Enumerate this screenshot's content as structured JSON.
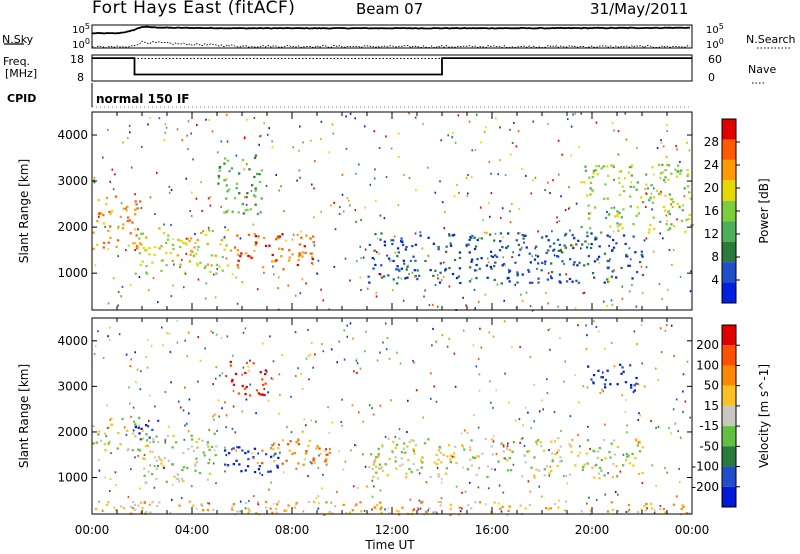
{
  "header": {
    "station": "Fort Hays East (fitACF)",
    "beam": "Beam 07",
    "date": "31/May/2011"
  },
  "side_labels": {
    "nsky": "N.Sky",
    "freq": "Freq.",
    "mhz": "[MHz]",
    "cpid": "CPID",
    "nsearch": "N.Search",
    "nave": "Nave",
    "cpid_value": "normal 150 IF"
  },
  "strip_ticks": {
    "nsky": [
      "10^5",
      "10^0"
    ],
    "nsearch": [
      "10^5",
      "10^0"
    ],
    "freq": [
      "18",
      "8"
    ],
    "nave": [
      "60",
      "0"
    ]
  },
  "colors": {
    "power": [
      "#0020e0",
      "#1f4fc8",
      "#2a7a3c",
      "#4fae5a",
      "#7ccf3c",
      "#e6d800",
      "#ff9a00",
      "#ff5a00",
      "#e00000"
    ],
    "velocity": [
      "#0018d8",
      "#1f4fc8",
      "#2a7a3c",
      "#60c040",
      "#c8c8c0",
      "#ffc020",
      "#ff8800",
      "#ff5000",
      "#e00000"
    ]
  },
  "chart_data": [
    {
      "type": "line",
      "panel": "noise",
      "series": [
        {
          "name": "N.Sky",
          "x": [
            0,
            1,
            1.5,
            2,
            3,
            6,
            12,
            18,
            24
          ],
          "y": [
            3.2,
            3.2,
            3.6,
            4.6,
            4.4,
            4.3,
            4.3,
            4.3,
            4.4
          ]
        },
        {
          "name": "N.Search",
          "x": [
            0,
            1.5,
            2,
            3,
            6,
            12,
            18,
            24
          ],
          "y": [
            0.2,
            0.2,
            1.3,
            1.0,
            0.4,
            0.3,
            0.3,
            0.3
          ]
        }
      ],
      "yticks_left": [
        "10^5",
        "10^0"
      ],
      "yticks_right": [
        "10^5",
        "10^0"
      ]
    },
    {
      "type": "line",
      "panel": "frequency",
      "series": [
        {
          "name": "Freq.",
          "x": [
            0,
            1.7,
            1.7,
            14,
            14,
            24
          ],
          "y": [
            16.8,
            16.8,
            10.5,
            10.5,
            16.8,
            16.8
          ]
        },
        {
          "name": "Nave",
          "x": [
            0,
            24
          ],
          "y": [
            52,
            52
          ]
        }
      ],
      "yticks_left": [
        "18",
        "8"
      ],
      "yticks_right": [
        "60",
        "0"
      ]
    },
    {
      "type": "heatmap",
      "panel": "power",
      "ylabel": "Slant Range [km]",
      "colorbar_label": "Power [dB]",
      "colorbar_ticks": [
        "28",
        "24",
        "20",
        "16",
        "12",
        "8",
        "4"
      ],
      "ylim": [
        200,
        4500
      ],
      "yticks": [
        "1000",
        "2000",
        "3000",
        "4000"
      ],
      "regions": [
        {
          "x0": 0.0,
          "x1": 1.9,
          "y0": 1550,
          "y1": 2700,
          "level": 6
        },
        {
          "x0": 1.7,
          "x1": 5.5,
          "y0": 1000,
          "y1": 2000,
          "level": 5
        },
        {
          "x0": 5.5,
          "x1": 9.0,
          "y0": 1100,
          "y1": 1900,
          "level": 7
        },
        {
          "x0": 5.0,
          "x1": 6.8,
          "y0": 2300,
          "y1": 3600,
          "level": 3
        },
        {
          "x0": 11.0,
          "x1": 22.0,
          "y0": 800,
          "y1": 1900,
          "level": 1
        },
        {
          "x0": 19.5,
          "x1": 24.0,
          "y0": 1900,
          "y1": 3400,
          "level": 4
        }
      ]
    },
    {
      "type": "heatmap",
      "panel": "velocity",
      "xlabel": "Time UT",
      "ylabel": "Slant Range [km]",
      "colorbar_label": "Velocity [m s^-1]",
      "colorbar_ticks": [
        "200",
        "100",
        "50",
        "15",
        "-15",
        "-50",
        "-100",
        "-200"
      ],
      "ylim": [
        200,
        4500
      ],
      "yticks": [
        "1000",
        "2000",
        "3000",
        "4000"
      ],
      "xticks": [
        "00:00",
        "04:00",
        "08:00",
        "12:00",
        "16:00",
        "20:00",
        "00:00"
      ],
      "regions": [
        {
          "x0": 0.0,
          "x1": 2.0,
          "y0": 1600,
          "y1": 2400,
          "level": 4
        },
        {
          "x0": 1.7,
          "x1": 2.6,
          "y0": 1800,
          "y1": 2300,
          "level": 0
        },
        {
          "x0": 2.0,
          "x1": 5.0,
          "y0": 900,
          "y1": 2000,
          "level": 4
        },
        {
          "x0": 5.2,
          "x1": 7.5,
          "y0": 1100,
          "y1": 1700,
          "level": 0
        },
        {
          "x0": 6.5,
          "x1": 9.5,
          "y0": 1300,
          "y1": 1900,
          "level": 6
        },
        {
          "x0": 5.5,
          "x1": 7.0,
          "y0": 2800,
          "y1": 3600,
          "level": 8
        },
        {
          "x0": 11.0,
          "x1": 22.0,
          "y0": 1000,
          "y1": 1900,
          "level": 4
        },
        {
          "x0": 19.8,
          "x1": 21.8,
          "y0": 2900,
          "y1": 3500,
          "level": 0
        },
        {
          "x0": 0.0,
          "x1": 24.0,
          "y0": 200,
          "y1": 500,
          "level": 5
        }
      ]
    }
  ]
}
